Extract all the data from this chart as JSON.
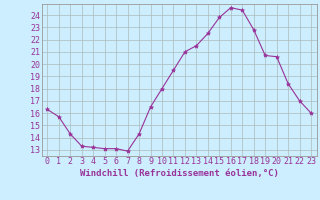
{
  "x": [
    0,
    1,
    2,
    3,
    4,
    5,
    6,
    7,
    8,
    9,
    10,
    11,
    12,
    13,
    14,
    15,
    16,
    17,
    18,
    19,
    20,
    21,
    22,
    23
  ],
  "y": [
    16.3,
    15.7,
    14.3,
    13.3,
    13.2,
    13.1,
    13.1,
    12.9,
    14.3,
    16.5,
    18.0,
    19.5,
    21.0,
    21.5,
    22.5,
    23.8,
    24.6,
    24.4,
    22.8,
    20.7,
    20.6,
    18.4,
    17.0,
    16.0
  ],
  "line_color": "#993399",
  "marker": "*",
  "marker_size": 3,
  "bg_color": "#cceeff",
  "grid_color": "#aabbbb",
  "xlabel": "Windchill (Refroidissement éolien,°C)",
  "xlabel_color": "#993399",
  "tick_color": "#993399",
  "ylim": [
    12.5,
    24.9
  ],
  "xlim": [
    -0.5,
    23.5
  ],
  "yticks": [
    13,
    14,
    15,
    16,
    17,
    18,
    19,
    20,
    21,
    22,
    23,
    24
  ],
  "xticks": [
    0,
    1,
    2,
    3,
    4,
    5,
    6,
    7,
    8,
    9,
    10,
    11,
    12,
    13,
    14,
    15,
    16,
    17,
    18,
    19,
    20,
    21,
    22,
    23
  ],
  "tick_fontsize": 6,
  "xlabel_fontsize": 6.5
}
